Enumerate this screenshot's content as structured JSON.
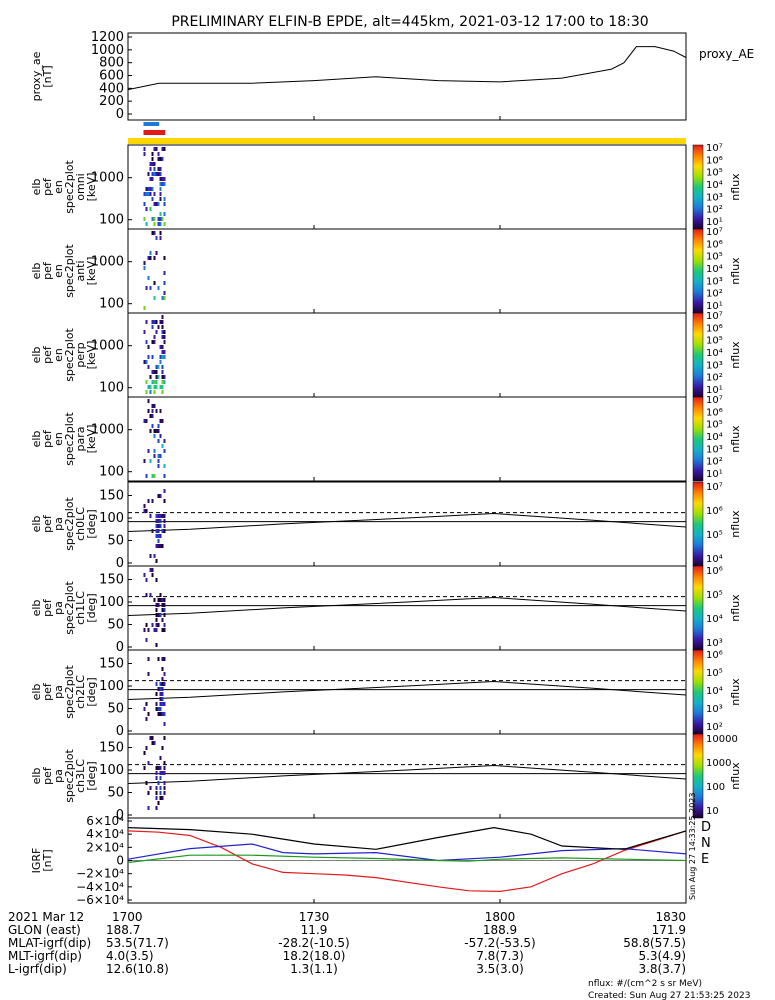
{
  "title": "PRELIMINARY ELFIN-B EPDE, alt=445km, 2021-03-12 17:00 to 18:30",
  "panels": {
    "ae": {
      "ylabel": [
        "proxy_ae",
        "[nT]"
      ],
      "yticks": [
        "0",
        "200",
        "400",
        "600",
        "800",
        "1000",
        "1200"
      ],
      "legend": "proxy_AE"
    },
    "spec": [
      {
        "ylabel": [
          "elb",
          "pef",
          "en",
          "spec2plot",
          "omni",
          "[keV]"
        ],
        "yticks": [
          "1000",
          "100"
        ]
      },
      {
        "ylabel": [
          "elb",
          "pef",
          "en",
          "spec2plot",
          "anti",
          "[keV]"
        ],
        "yticks": [
          "1000",
          "100"
        ]
      },
      {
        "ylabel": [
          "elb",
          "pef",
          "en",
          "spec2plot",
          "perp",
          "[keV]"
        ],
        "yticks": [
          "1000",
          "100"
        ]
      },
      {
        "ylabel": [
          "elb",
          "pef",
          "en",
          "spec2plot",
          "para",
          "[keV]"
        ],
        "yticks": [
          "1000",
          "100"
        ]
      }
    ],
    "pa": [
      {
        "ylabel": [
          "elb",
          "pef",
          "pa",
          "spec2plot",
          "ch0LC",
          "[deg]"
        ],
        "yticks": [
          "150",
          "100",
          "50",
          "0"
        ]
      },
      {
        "ylabel": [
          "elb",
          "pef",
          "pa",
          "spec2plot",
          "ch1LC",
          "[deg]"
        ],
        "yticks": [
          "150",
          "100",
          "50",
          "0"
        ]
      },
      {
        "ylabel": [
          "elb",
          "pef",
          "pa",
          "spec2plot",
          "ch2LC",
          "[deg]"
        ],
        "yticks": [
          "150",
          "100",
          "50",
          "0"
        ]
      },
      {
        "ylabel": [
          "elb",
          "pef",
          "pa",
          "spec2plot",
          "ch3LC",
          "[deg]"
        ],
        "yticks": [
          "150",
          "100",
          "50",
          "0"
        ]
      }
    ],
    "igrf": {
      "ylabel": [
        "IGRF",
        "[nT]"
      ],
      "yticks": [
        "6×10⁴",
        "4×10⁴",
        "2×10⁴",
        "0",
        "−2×10⁴",
        "−4×10⁴",
        "−6×10⁴"
      ],
      "legend": [
        "D",
        "N",
        "E"
      ],
      "side_note": "Sun Aug 27 14:33:25 2023"
    }
  },
  "colorbars": {
    "spec_ticks": [
      "10⁷",
      "10⁶",
      "10⁵",
      "10⁴",
      "10³",
      "10²",
      "10¹"
    ],
    "pa_ticks_a": [
      "10⁷",
      "10⁶",
      "10⁵",
      "10⁴"
    ],
    "pa_ticks_b": [
      "10⁶",
      "10⁵",
      "10⁴",
      "10³"
    ],
    "pa_ticks_c": [
      "10⁶",
      "10⁵",
      "10⁴",
      "10³",
      "10²"
    ],
    "pa_ticks_d": [
      "10000",
      "1000",
      "100",
      "10"
    ],
    "label": "nflux"
  },
  "footer": {
    "rows": [
      {
        "label": "2021 Mar 12",
        "values": [
          "1700",
          "1730",
          "1800",
          "1830"
        ]
      },
      {
        "label": "GLON (east)",
        "values": [
          "188.7",
          "11.9",
          "188.9",
          "171.9"
        ]
      },
      {
        "label": "MLAT-igrf(dip)",
        "values": [
          "53.5(71.7)",
          "-28.2(-10.5)",
          "-57.2(-53.5)",
          "58.8(57.5)"
        ]
      },
      {
        "label": "MLT-igrf(dip)",
        "values": [
          "4.0(3.5)",
          "18.2(18.0)",
          "7.8(7.3)",
          "5.3(4.9)"
        ]
      },
      {
        "label": "L-igrf(dip)",
        "values": [
          "12.6(10.8)",
          "1.3(1.1)",
          "3.5(3.0)",
          "3.8(3.7)"
        ]
      }
    ],
    "note1": "nflux: #/(cm^2 s sr MeV)",
    "note2": "Created: Sun Aug 27 21:53:25 2023"
  },
  "chart_data": {
    "type": "line",
    "x_range_utc": [
      "2021-03-12 17:00",
      "2021-03-12 18:30"
    ],
    "proxy_ae": {
      "x_min_after_1700": [
        0,
        5,
        10,
        20,
        30,
        40,
        50,
        60,
        70,
        78,
        80,
        82,
        85,
        88,
        90
      ],
      "values_nT": [
        380,
        480,
        480,
        480,
        520,
        580,
        520,
        500,
        560,
        700,
        800,
        1050,
        1050,
        980,
        880
      ],
      "ylim": [
        0,
        1200
      ]
    },
    "spectrogram_energy_keV_ylim": [
      60,
      6000
    ],
    "pitch_angle_ylim": [
      0,
      180
    ],
    "data_burst_x_min": [
      2.5,
      6.0
    ],
    "loss_cone_dashed_deg": 112,
    "pa_line_deg": [
      92,
      110,
      92
    ],
    "pa_curve_deg": [
      {
        "x": 0,
        "y": 70
      },
      {
        "x": 10,
        "y": 75
      },
      {
        "x": 25,
        "y": 87
      },
      {
        "x": 45,
        "y": 100
      },
      {
        "x": 59,
        "y": 110
      },
      {
        "x": 75,
        "y": 95
      },
      {
        "x": 90,
        "y": 80
      }
    ],
    "igrf": {
      "ylim": [
        -60000,
        60000
      ],
      "series": [
        {
          "name": "D",
          "color": "#e31a1c",
          "x": [
            0,
            5,
            10,
            15,
            20,
            25,
            30,
            35,
            40,
            50,
            55,
            60,
            65,
            70,
            75,
            80,
            85,
            90
          ],
          "y": [
            45000,
            43000,
            38000,
            20000,
            -5000,
            -18000,
            -20000,
            -22000,
            -26000,
            -40000,
            -46000,
            -47000,
            -40000,
            -20000,
            -5000,
            15000,
            30000,
            45000
          ]
        },
        {
          "name": "N",
          "color": "#2222cc",
          "x": [
            0,
            10,
            20,
            25,
            30,
            40,
            50,
            60,
            70,
            80,
            90
          ],
          "y": [
            2000,
            18000,
            25000,
            12000,
            10000,
            12000,
            0,
            5000,
            15000,
            18000,
            10000
          ]
        },
        {
          "name": "E",
          "color": "#1a9a1a",
          "x": [
            0,
            10,
            20,
            30,
            40,
            50,
            55,
            60,
            70,
            80,
            90
          ],
          "y": [
            -3000,
            8000,
            8000,
            5000,
            3000,
            0,
            -1000,
            2000,
            4000,
            2000,
            0
          ]
        },
        {
          "name": "",
          "color": "#000000",
          "x": [
            0,
            10,
            20,
            30,
            40,
            50,
            59,
            65,
            70,
            80,
            90
          ],
          "y": [
            50000,
            47000,
            40000,
            25000,
            17000,
            35000,
            50000,
            40000,
            22000,
            17000,
            45000
          ]
        }
      ]
    }
  }
}
